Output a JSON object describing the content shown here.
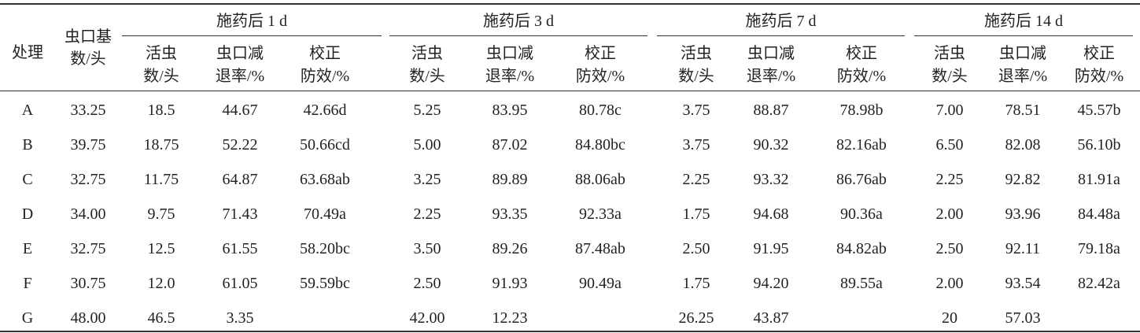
{
  "table": {
    "corner": "处理",
    "base_header": [
      "虫口基",
      "数/头"
    ],
    "groups": [
      "施药后 1 d",
      "施药后 3 d",
      "施药后 7 d",
      "施药后 14 d"
    ],
    "subheaders": [
      [
        "活虫",
        "数/头"
      ],
      [
        "虫口减",
        "退率/%"
      ],
      [
        "校正",
        "防效/%"
      ]
    ],
    "rows": [
      {
        "label": "A",
        "base": "33.25",
        "groups": [
          [
            "18.5",
            "44.67",
            "42.66d"
          ],
          [
            "5.25",
            "83.95",
            "80.78c"
          ],
          [
            "3.75",
            "88.87",
            "78.98b"
          ],
          [
            "7.00",
            "78.51",
            "45.57b"
          ]
        ]
      },
      {
        "label": "B",
        "base": "39.75",
        "groups": [
          [
            "18.75",
            "52.22",
            "50.66cd"
          ],
          [
            "5.00",
            "87.02",
            "84.80bc"
          ],
          [
            "3.75",
            "90.32",
            "82.16ab"
          ],
          [
            "6.50",
            "82.08",
            "56.10b"
          ]
        ]
      },
      {
        "label": "C",
        "base": "32.75",
        "groups": [
          [
            "11.75",
            "64.87",
            "63.68ab"
          ],
          [
            "3.25",
            "89.89",
            "88.06ab"
          ],
          [
            "2.25",
            "93.32",
            "86.76ab"
          ],
          [
            "2.25",
            "92.82",
            "81.91a"
          ]
        ]
      },
      {
        "label": "D",
        "base": "34.00",
        "groups": [
          [
            "9.75",
            "71.43",
            "70.49a"
          ],
          [
            "2.25",
            "93.35",
            "92.33a"
          ],
          [
            "1.75",
            "94.68",
            "90.36a"
          ],
          [
            "2.00",
            "93.96",
            "84.48a"
          ]
        ]
      },
      {
        "label": "E",
        "base": "32.75",
        "groups": [
          [
            "12.5",
            "61.55",
            "58.20bc"
          ],
          [
            "3.50",
            "89.26",
            "87.48ab"
          ],
          [
            "2.50",
            "91.95",
            "84.82ab"
          ],
          [
            "2.50",
            "92.11",
            "79.18a"
          ]
        ]
      },
      {
        "label": "F",
        "base": "30.75",
        "groups": [
          [
            "12.0",
            "61.05",
            "59.59bc"
          ],
          [
            "2.50",
            "91.93",
            "90.49a"
          ],
          [
            "1.75",
            "94.20",
            "89.55a"
          ],
          [
            "2.00",
            "93.54",
            "82.42a"
          ]
        ]
      },
      {
        "label": "G",
        "base": "48.00",
        "groups": [
          [
            "46.5",
            "3.35"
          ],
          [
            "42.00",
            "12.23"
          ],
          [
            "26.25",
            "43.87"
          ],
          [
            "20",
            "57.03"
          ]
        ]
      }
    ]
  }
}
